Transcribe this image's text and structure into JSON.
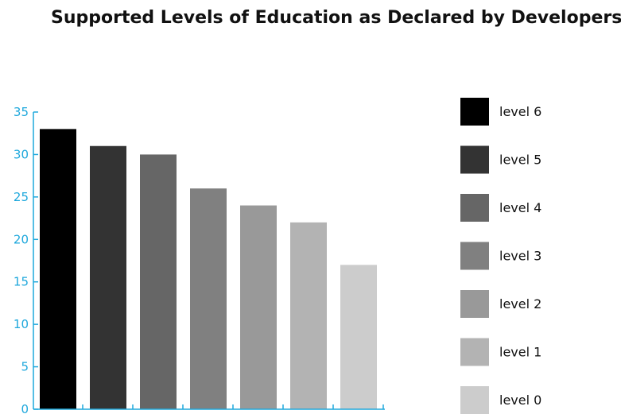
{
  "chart_data": {
    "type": "bar",
    "title": "Supported Levels of Education as Declared by Developers",
    "xlabel": "",
    "ylabel": "",
    "categories": [
      "level 6",
      "level 5",
      "level 4",
      "level 3",
      "level 2",
      "level 1",
      "level 0"
    ],
    "values": [
      33,
      31,
      30,
      26,
      24,
      22,
      17
    ],
    "colors": [
      "#000000",
      "#333333",
      "#666666",
      "#808080",
      "#999999",
      "#b3b3b3",
      "#cccccc"
    ],
    "ylim": [
      0,
      35
    ],
    "yticks": [
      0,
      5,
      10,
      15,
      20,
      25,
      30,
      35
    ],
    "axis_color": "#1fa8dc",
    "grid": false,
    "legend": {
      "placement": "right",
      "entries": [
        "level 6",
        "level 5",
        "level 4",
        "level 3",
        "level 2",
        "level 1",
        "level 0"
      ]
    }
  }
}
